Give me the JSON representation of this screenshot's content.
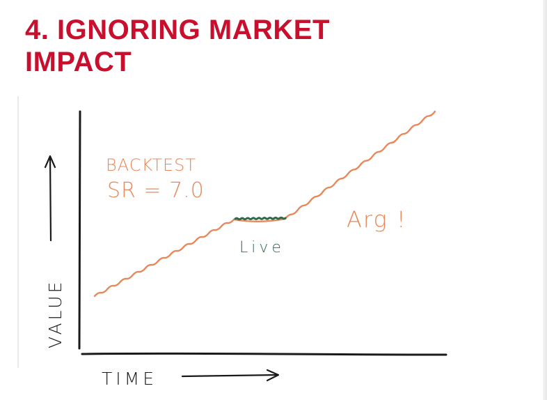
{
  "title": {
    "line1": "4. IGNORING MARKET",
    "line2": "IMPACT"
  },
  "sketch": {
    "y_axis_label": "VALUE",
    "x_axis_label": "TIME",
    "backtest_line1": "BACKTEST",
    "backtest_line2": "SR = 7.0",
    "live_label": "Live",
    "exclamation": "Arg !",
    "colors": {
      "title": "#c8102e",
      "backtest_curve": "#e8875a",
      "live_segment": "#2f6b4a",
      "axes": "#1a1a1a"
    }
  }
}
